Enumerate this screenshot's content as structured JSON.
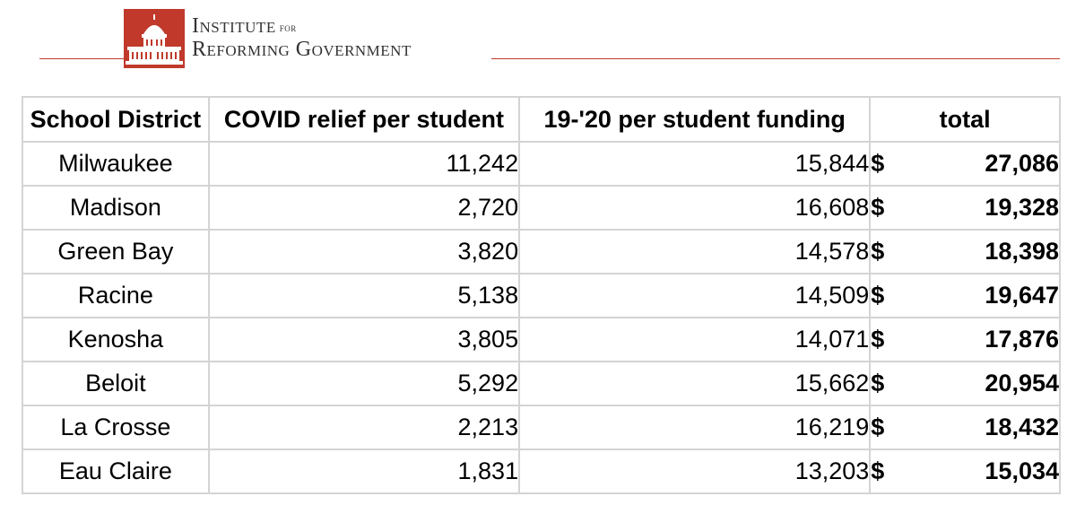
{
  "header": {
    "logo": {
      "line1_word": "Institute",
      "line1_small": "for",
      "line2_words": [
        "Reforming",
        "Government"
      ],
      "colors": {
        "mark": "#c0392b",
        "text": "#333333"
      }
    }
  },
  "table": {
    "headers": [
      "School District",
      "COVID relief per student",
      "19-'20 per student funding",
      "total"
    ],
    "currency_symbol": "$",
    "rows": [
      {
        "district": "Milwaukee",
        "covid": "11,242",
        "funding": "15,844",
        "total": "27,086"
      },
      {
        "district": "Madison",
        "covid": "2,720",
        "funding": "16,608",
        "total": "19,328"
      },
      {
        "district": "Green Bay",
        "covid": "3,820",
        "funding": "14,578",
        "total": "18,398"
      },
      {
        "district": "Racine",
        "covid": "5,138",
        "funding": "14,509",
        "total": "19,647"
      },
      {
        "district": "Kenosha",
        "covid": "3,805",
        "funding": "14,071",
        "total": "17,876"
      },
      {
        "district": "Beloit",
        "covid": "5,292",
        "funding": "15,662",
        "total": "20,954"
      },
      {
        "district": "La Crosse",
        "covid": "2,213",
        "funding": "16,219",
        "total": "18,432"
      },
      {
        "district": "Eau Claire",
        "covid": "1,831",
        "funding": "13,203",
        "total": "15,034"
      }
    ],
    "colors": {
      "total": "#e0301e",
      "grid": "#d4d4d4"
    }
  }
}
